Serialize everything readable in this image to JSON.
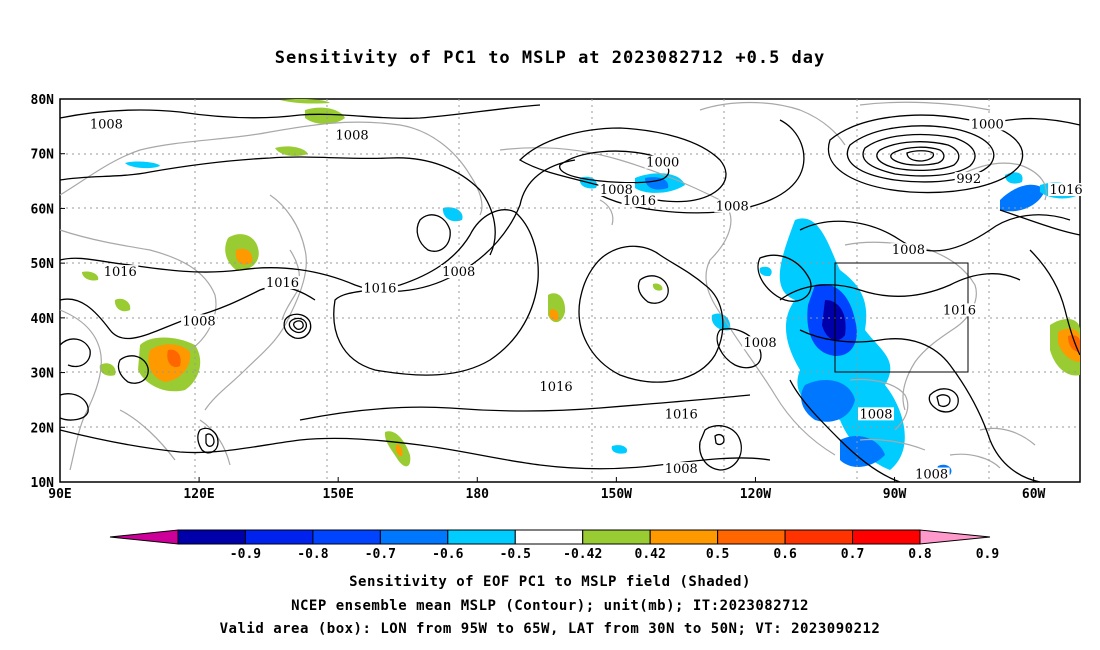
{
  "title": "Sensitivity of PC1 to MSLP at 2023082712 +0.5 day",
  "map": {
    "lat_labels": [
      "80N",
      "70N",
      "60N",
      "50N",
      "40N",
      "30N",
      "20N",
      "10N"
    ],
    "lon_labels": [
      "90E",
      "120E",
      "150E",
      "180",
      "150W",
      "120W",
      "90W",
      "60W"
    ],
    "extent": {
      "lon_min": 90,
      "lon_max": 310,
      "lat_min": 10,
      "lat_max": 80
    },
    "grid": "dotted",
    "box": {
      "lon_from": "95W",
      "lon_to": "65W",
      "lat_from": "30N",
      "lat_to": "50N"
    },
    "contour_labels": [
      {
        "text": "1008",
        "lon": 100,
        "lat": 75
      },
      {
        "text": "1008",
        "lon": 153,
        "lat": 73
      },
      {
        "text": "1008",
        "lon": 210,
        "lat": 63
      },
      {
        "text": "1000",
        "lon": 220,
        "lat": 68
      },
      {
        "text": "1016",
        "lon": 215,
        "lat": 61
      },
      {
        "text": "1008",
        "lon": 235,
        "lat": 60
      },
      {
        "text": "1000",
        "lon": 290,
        "lat": 75
      },
      {
        "text": "992",
        "lon": 286,
        "lat": 65
      },
      {
        "text": "1016",
        "lon": 307,
        "lat": 63
      },
      {
        "text": "1008",
        "lon": 273,
        "lat": 52
      },
      {
        "text": "1016",
        "lon": 103,
        "lat": 48
      },
      {
        "text": "1016",
        "lon": 138,
        "lat": 46
      },
      {
        "text": "1008",
        "lon": 176,
        "lat": 48
      },
      {
        "text": "1016",
        "lon": 159,
        "lat": 45
      },
      {
        "text": "1016",
        "lon": 284,
        "lat": 41
      },
      {
        "text": "1008",
        "lon": 120,
        "lat": 39
      },
      {
        "text": "1008",
        "lon": 241,
        "lat": 35
      },
      {
        "text": "1016",
        "lon": 197,
        "lat": 27
      },
      {
        "text": "1016",
        "lon": 224,
        "lat": 22
      },
      {
        "text": "1008",
        "lon": 266,
        "lat": 22
      },
      {
        "text": "1008",
        "lon": 224,
        "lat": 12
      },
      {
        "text": "1008",
        "lon": 278,
        "lat": 11
      }
    ]
  },
  "colorbar": {
    "labels": [
      "-0.9",
      "-0.8",
      "-0.7",
      "-0.6",
      "-0.5",
      "-0.42",
      "0.42",
      "0.5",
      "0.6",
      "0.7",
      "0.8",
      "0.9"
    ],
    "colors": [
      "#cc0099",
      "#0000aa",
      "#0022ee",
      "#0044ff",
      "#0077ff",
      "#00ccff",
      "#ffffff",
      "#99cc33",
      "#ff9900",
      "#ff6600",
      "#ff3300",
      "#ff0000",
      "#ff99cc"
    ]
  },
  "captions": {
    "line1": "Sensitivity of EOF PC1 to MSLP field (Shaded)",
    "line2": "NCEP ensemble mean MSLP (Contour); unit(mb); IT:2023082712",
    "line3": "Valid area (box): LON from 95W to 65W, LAT from 30N to 50N; VT: 2023090212"
  }
}
